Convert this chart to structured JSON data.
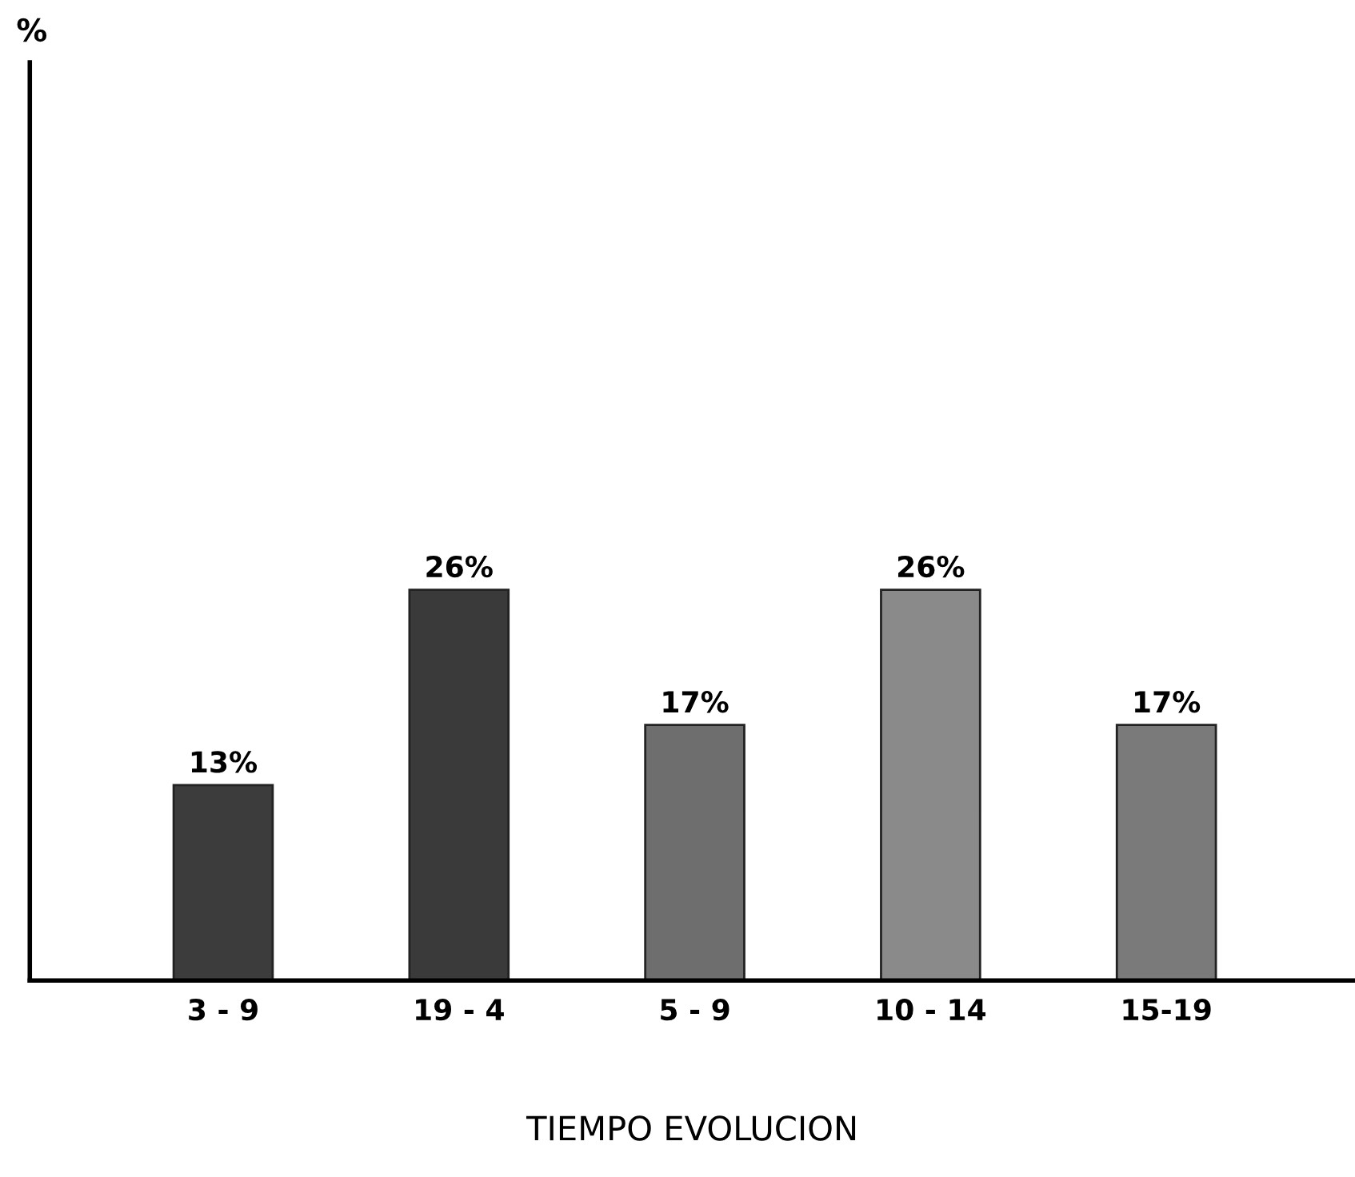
{
  "chart_data": {
    "type": "bar",
    "annotations": [
      "%"
    ],
    "xlabel": "TIEMPO EVOLUCION",
    "categories": [
      "3 - 9",
      "19 - 4",
      "5 - 9",
      "10 - 14",
      "15-19"
    ],
    "values": [
      13,
      26,
      17,
      26,
      17
    ],
    "value_labels": [
      "13%",
      "26%",
      "17%",
      "26%",
      "17%"
    ],
    "colors": [
      "#3c3c3c",
      "#3a3a3a",
      "#6e6e6e",
      "#8a8a8a",
      "#7a7a7a"
    ],
    "grid": false,
    "legend": false
  }
}
